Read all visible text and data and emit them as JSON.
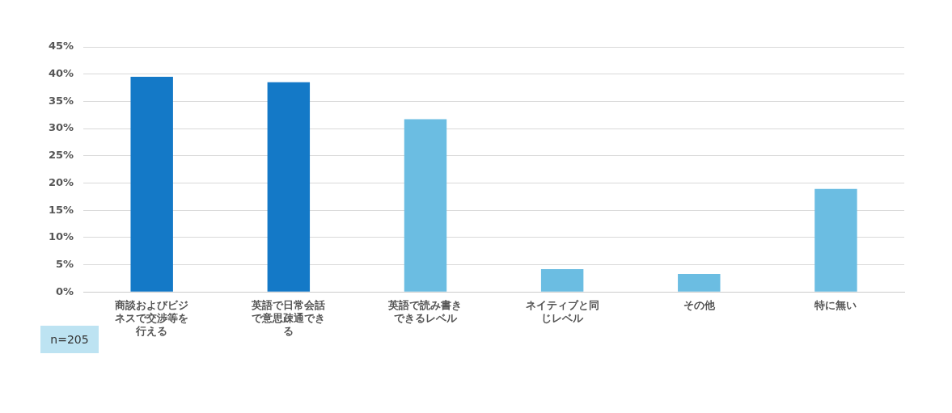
{
  "chart_data": {
    "type": "bar",
    "categories": [
      "商談およびビジネスで交渉等を行える",
      "英語で日常会話で意思疎通できる",
      "英語で読み書きできるレベル",
      "ネイティブと同じレベル",
      "その他",
      "特に無い"
    ],
    "values": [
      39.5,
      38.5,
      31.7,
      4.2,
      3.3,
      18.9
    ],
    "colors": [
      "#1479c7",
      "#1479c7",
      "#6bbde2",
      "#6bbde2",
      "#6bbde2",
      "#6bbde2"
    ],
    "ylim": [
      0,
      45
    ],
    "yticks": [
      {
        "value": 0,
        "label": "0%"
      },
      {
        "value": 5,
        "label": "5%"
      },
      {
        "value": 10,
        "label": "10%"
      },
      {
        "value": 15,
        "label": "15%"
      },
      {
        "value": 20,
        "label": "20%"
      },
      {
        "value": 25,
        "label": "25%"
      },
      {
        "value": 30,
        "label": "30%"
      },
      {
        "value": 35,
        "label": "35%"
      },
      {
        "value": 40,
        "label": "40%"
      },
      {
        "value": 45,
        "label": "45%"
      }
    ],
    "grid": "y",
    "annotations": [
      "n=205"
    ]
  }
}
